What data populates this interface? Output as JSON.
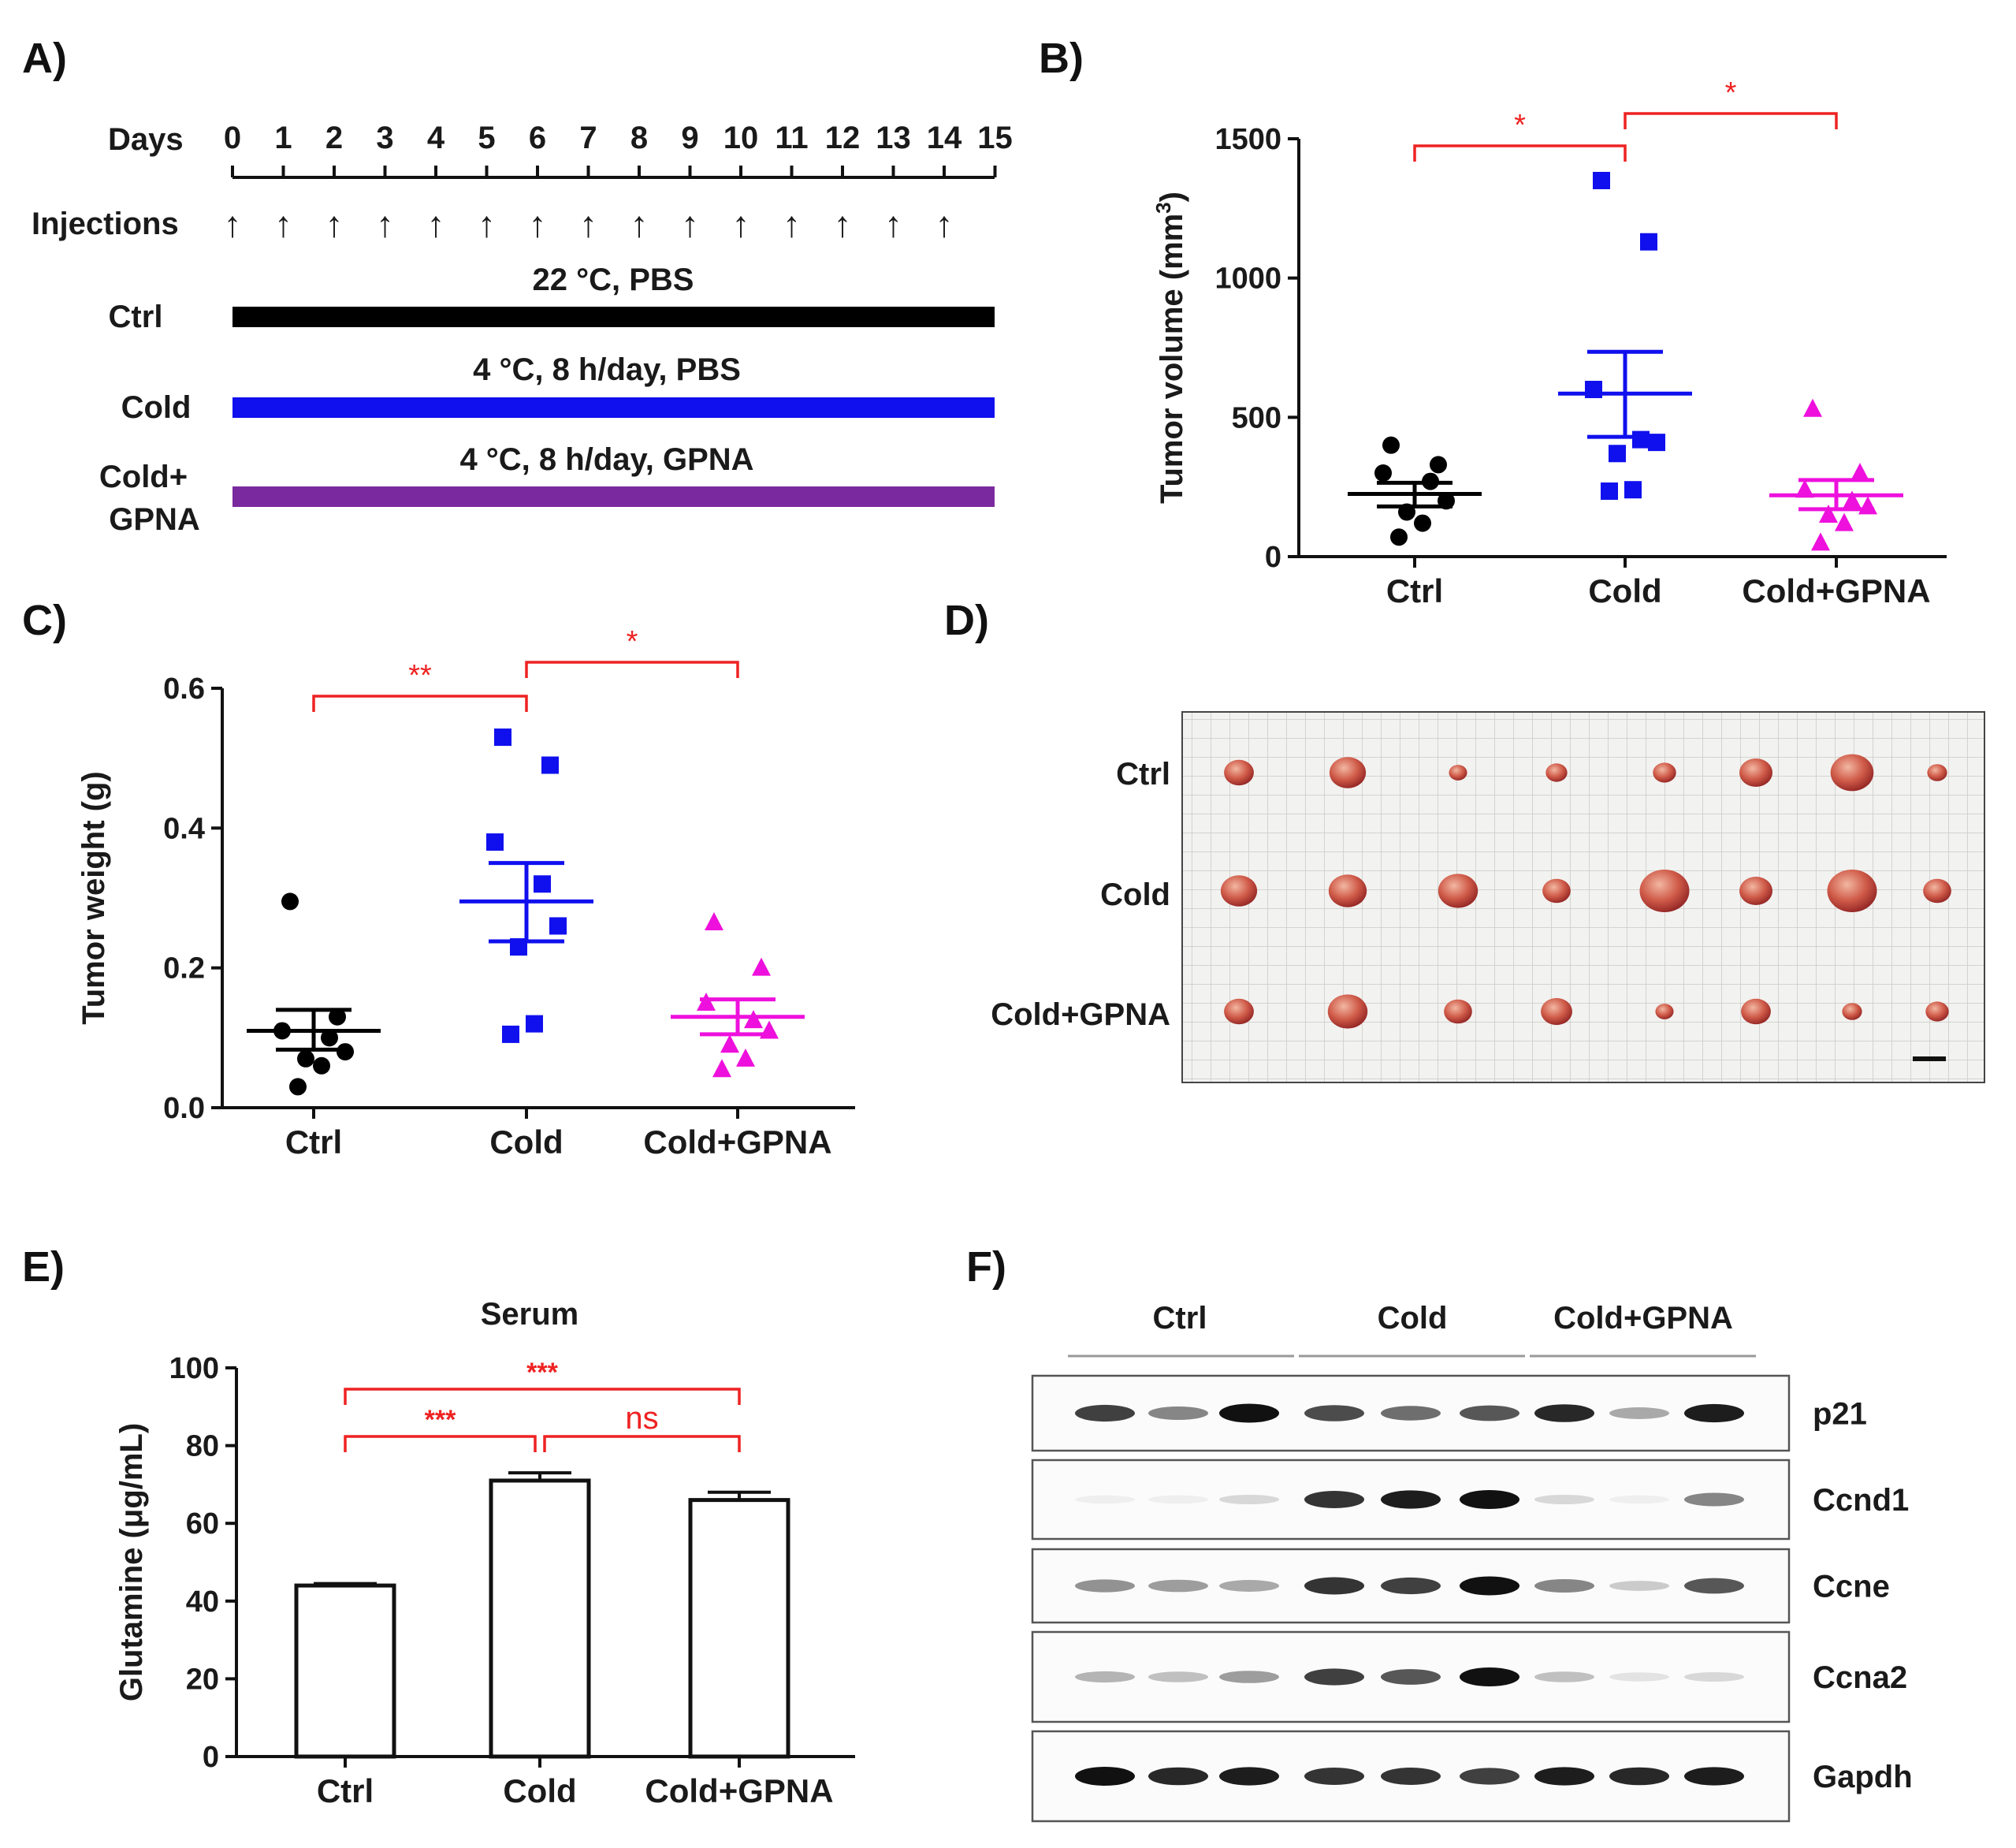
{
  "panels": {
    "a": {
      "letter": "A)",
      "days_label": "Days",
      "days": [
        "0",
        "1",
        "2",
        "3",
        "4",
        "5",
        "6",
        "7",
        "8",
        "9",
        "10",
        "11",
        "12",
        "13",
        "14",
        "15"
      ],
      "injections_label": "Injections",
      "injection_count": 15,
      "arrow_glyph": "↑",
      "groups": [
        {
          "name": "Ctrl",
          "condition": "22 °C, PBS",
          "color": "#000000"
        },
        {
          "name": "Cold",
          "condition": "4 °C, 8 h/day, PBS",
          "color": "#1010ee"
        },
        {
          "name": "Cold+\nGPNA",
          "name_line1": "Cold+",
          "name_line2": "GPNA",
          "condition": "4 °C, 8 h/day, GPNA",
          "color": "#7a2a9e"
        }
      ]
    },
    "b": {
      "letter": "B)"
    },
    "c": {
      "letter": "C)"
    },
    "d": {
      "letter": "D)",
      "rows": [
        "Ctrl",
        "Cold",
        "Cold+GPNA"
      ],
      "scale_bar": true
    },
    "e": {
      "letter": "E)"
    },
    "f": {
      "letter": "F)",
      "groups": [
        "Ctrl",
        "Cold",
        "Cold+GPNA"
      ],
      "bands": [
        "p21",
        "Ccnd1",
        "Ccne",
        "Ccna2",
        "Gapdh"
      ],
      "band_intensity": [
        [
          0.8,
          0.5,
          1.0,
          0.75,
          0.6,
          0.7,
          0.9,
          0.35,
          0.95
        ],
        [
          0.05,
          0.05,
          0.15,
          0.85,
          0.95,
          1.0,
          0.15,
          0.05,
          0.5
        ],
        [
          0.45,
          0.4,
          0.35,
          0.85,
          0.8,
          1.0,
          0.5,
          0.2,
          0.7
        ],
        [
          0.3,
          0.25,
          0.4,
          0.8,
          0.7,
          1.0,
          0.25,
          0.1,
          0.15
        ],
        [
          1.0,
          0.9,
          0.95,
          0.85,
          0.85,
          0.8,
          0.95,
          0.9,
          0.95
        ]
      ]
    }
  },
  "colors": {
    "ctrl": "#000000",
    "cold": "#1010ee",
    "gpna": "#ee10dd",
    "sig": "#ee2222",
    "purple_bar": "#7a2a9e"
  },
  "chart_data": [
    {
      "id": "B",
      "type": "scatter",
      "title": "",
      "xlabel": "",
      "ylabel": "Tumor volume (mm",
      "ylabel_sup": "3",
      "ylabel_close": ")",
      "categories": [
        "Ctrl",
        "Cold",
        "Cold+GPNA"
      ],
      "ylim": [
        0,
        1500
      ],
      "yticks": [
        0,
        500,
        1000,
        1500
      ],
      "series": [
        {
          "name": "Ctrl",
          "marker": "circle",
          "color": "#000000",
          "values": [
            400,
            330,
            300,
            270,
            200,
            160,
            120,
            70
          ],
          "mean": 225,
          "sem_low": 180,
          "sem_high": 265
        },
        {
          "name": "Cold",
          "marker": "square",
          "color": "#1010ee",
          "values": [
            1350,
            1130,
            600,
            420,
            410,
            370,
            240,
            235
          ],
          "mean": 585,
          "sem_low": 430,
          "sem_high": 735
        },
        {
          "name": "Cold+GPNA",
          "marker": "triangle",
          "color": "#ee10dd",
          "values": [
            530,
            300,
            240,
            200,
            180,
            150,
            120,
            50
          ],
          "mean": 220,
          "sem_low": 170,
          "sem_high": 275
        }
      ],
      "comparisons": [
        {
          "from": 0,
          "to": 1,
          "label": "*"
        },
        {
          "from": 1,
          "to": 2,
          "label": "*"
        }
      ]
    },
    {
      "id": "C",
      "type": "scatter",
      "title": "",
      "xlabel": "",
      "ylabel": "Tumor weight (g)",
      "categories": [
        "Ctrl",
        "Cold",
        "Cold+GPNA"
      ],
      "ylim": [
        0,
        0.6
      ],
      "yticks": [
        "0.0",
        "0.2",
        "0.4",
        "0.6"
      ],
      "series": [
        {
          "name": "Ctrl",
          "marker": "circle",
          "color": "#000000",
          "values": [
            0.295,
            0.13,
            0.11,
            0.1,
            0.08,
            0.07,
            0.06,
            0.03
          ],
          "mean": 0.11,
          "sem_low": 0.083,
          "sem_high": 0.14
        },
        {
          "name": "Cold",
          "marker": "square",
          "color": "#1010ee",
          "values": [
            0.53,
            0.49,
            0.38,
            0.32,
            0.26,
            0.23,
            0.12,
            0.105
          ],
          "mean": 0.295,
          "sem_low": 0.238,
          "sem_high": 0.35
        },
        {
          "name": "Cold+GPNA",
          "marker": "triangle",
          "color": "#ee10dd",
          "values": [
            0.265,
            0.2,
            0.15,
            0.125,
            0.11,
            0.09,
            0.07,
            0.055
          ],
          "mean": 0.13,
          "sem_low": 0.105,
          "sem_high": 0.155
        }
      ],
      "comparisons": [
        {
          "from": 0,
          "to": 1,
          "label": "**"
        },
        {
          "from": 1,
          "to": 2,
          "label": "*"
        }
      ]
    },
    {
      "id": "E",
      "type": "bar",
      "title": "Serum",
      "xlabel": "",
      "ylabel": "Glutamine (μg/mL)",
      "categories": [
        "Ctrl",
        "Cold",
        "Cold+GPNA"
      ],
      "values": [
        44,
        71,
        66
      ],
      "errors": [
        0.5,
        2,
        2
      ],
      "ylim": [
        0,
        100
      ],
      "yticks": [
        0,
        20,
        40,
        60,
        80,
        100
      ],
      "comparisons": [
        {
          "from": 0,
          "to": 2,
          "label": "***"
        },
        {
          "from": 0,
          "to": 1,
          "label": "***"
        },
        {
          "from": 1,
          "to": 2,
          "label": "ns"
        }
      ]
    }
  ]
}
